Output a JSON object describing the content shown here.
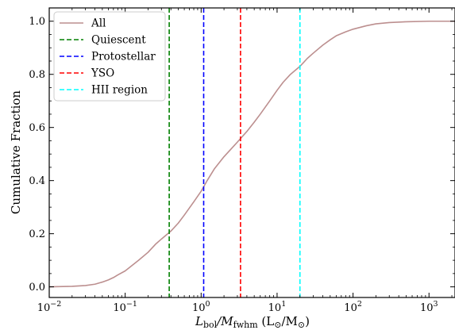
{
  "chart_data": {
    "type": "line",
    "xscale": "log",
    "xlim": [
      0.01,
      2200
    ],
    "ylim": [
      -0.04,
      1.05
    ],
    "xlabel": {
      "l_main": "L",
      "l_sub": "bol",
      "slash": "/",
      "m_main": "M",
      "m_sub": "fwhm",
      "unit_open": " (L",
      "unit_sun1": "⊙",
      "unit_mid": "/M",
      "unit_sun2": "⊙",
      "unit_close": ")"
    },
    "ylabel": "Cumulative Fraction",
    "xticks": [
      {
        "value": 0.01,
        "base": "10",
        "exp": "−2"
      },
      {
        "value": 0.1,
        "base": "10",
        "exp": "−1"
      },
      {
        "value": 1,
        "base": "10",
        "exp": "0"
      },
      {
        "value": 10,
        "base": "10",
        "exp": "1"
      },
      {
        "value": 100,
        "base": "10",
        "exp": "2"
      },
      {
        "value": 1000,
        "base": "10",
        "exp": "3"
      }
    ],
    "yticks": [
      {
        "value": 0.0,
        "label": "0.0"
      },
      {
        "value": 0.2,
        "label": "0.2"
      },
      {
        "value": 0.4,
        "label": "0.4"
      },
      {
        "value": 0.6,
        "label": "0.6"
      },
      {
        "value": 0.8,
        "label": "0.8"
      },
      {
        "value": 1.0,
        "label": "1.0"
      }
    ],
    "legend_position": "top-left",
    "series": [
      {
        "name": "All",
        "color": "#bc8f8f",
        "style": "solid",
        "x": [
          0.01,
          0.02,
          0.03,
          0.04,
          0.05,
          0.06,
          0.07,
          0.08,
          0.1,
          0.12,
          0.15,
          0.2,
          0.25,
          0.3,
          0.4,
          0.5,
          0.6,
          0.8,
          1.0,
          1.2,
          1.5,
          2.0,
          2.5,
          3.0,
          4.0,
          5.0,
          6.0,
          8.0,
          10,
          12,
          15,
          20,
          25,
          30,
          40,
          50,
          60,
          80,
          100,
          150,
          200,
          300,
          500,
          1000,
          2200
        ],
        "y": [
          0.0,
          0.002,
          0.005,
          0.01,
          0.018,
          0.026,
          0.035,
          0.045,
          0.06,
          0.078,
          0.1,
          0.13,
          0.16,
          0.18,
          0.21,
          0.24,
          0.27,
          0.32,
          0.36,
          0.4,
          0.445,
          0.49,
          0.52,
          0.545,
          0.585,
          0.62,
          0.65,
          0.7,
          0.74,
          0.77,
          0.8,
          0.83,
          0.86,
          0.88,
          0.91,
          0.93,
          0.945,
          0.96,
          0.97,
          0.983,
          0.99,
          0.995,
          0.998,
          1.0,
          1.0
        ]
      },
      {
        "name": "Quiescent",
        "color": "#008000",
        "style": "dashed",
        "x_value": 0.38
      },
      {
        "name": "Protostellar",
        "color": "#0000ff",
        "style": "dashed",
        "x_value": 1.08
      },
      {
        "name": "YSO",
        "color": "#ff0000",
        "style": "dashed",
        "x_value": 3.3
      },
      {
        "name": "HII region",
        "color": "#00ffff",
        "style": "dashed",
        "x_value": 20
      }
    ]
  }
}
